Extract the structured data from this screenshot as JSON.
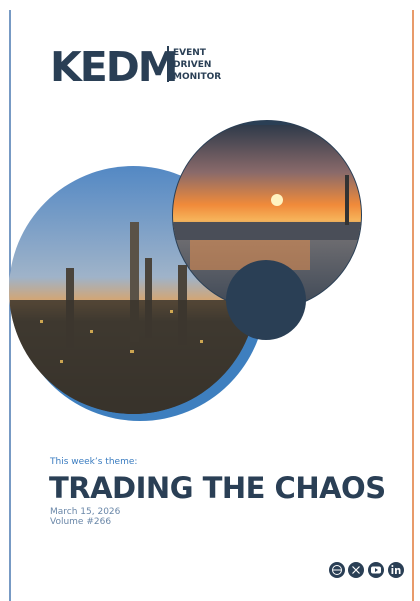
{
  "header": {
    "logo": "KEDM",
    "tagline": [
      "EVENT",
      "DRIVEN",
      "MONITOR"
    ]
  },
  "theme": {
    "label": "This week’s theme:",
    "title": "TRADING THE CHAOS"
  },
  "issue": {
    "date": "March 15, 2026",
    "volume": "Volume #266"
  }
}
